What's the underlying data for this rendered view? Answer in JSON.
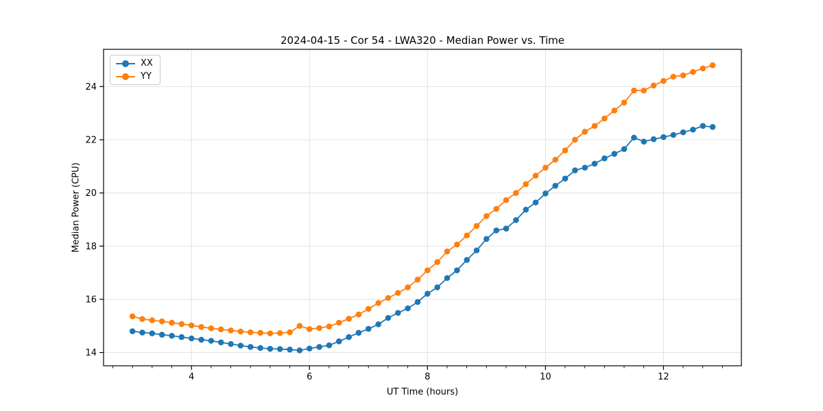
{
  "figure": {
    "background": "#ffffff"
  },
  "chart_data": {
    "type": "line",
    "title": "2024-04-15 - Cor 54 - LWA320 - Median Power vs. Time",
    "xlabel": "UT Time (hours)",
    "ylabel": "Median Power (CPU)",
    "xlim": [
      2.51,
      13.32
    ],
    "ylim": [
      13.5,
      25.4
    ],
    "xticks": [
      4,
      6,
      8,
      10,
      12
    ],
    "yticks": [
      14,
      16,
      18,
      20,
      22,
      24
    ],
    "x_minor_tick_step": 0.3333,
    "grid": true,
    "grid_color": "#e3e3e3",
    "spine_color": "#000000",
    "tick_color": "#000000",
    "legend_position": "upper-left",
    "marker": "circle",
    "x": [
      3.0,
      3.167,
      3.333,
      3.5,
      3.667,
      3.833,
      4.0,
      4.167,
      4.333,
      4.5,
      4.667,
      4.833,
      5.0,
      5.167,
      5.333,
      5.5,
      5.667,
      5.833,
      6.0,
      6.167,
      6.333,
      6.5,
      6.667,
      6.833,
      7.0,
      7.167,
      7.333,
      7.5,
      7.667,
      7.833,
      8.0,
      8.167,
      8.333,
      8.5,
      8.667,
      8.833,
      9.0,
      9.167,
      9.333,
      9.5,
      9.667,
      9.833,
      10.0,
      10.167,
      10.333,
      10.5,
      10.667,
      10.833,
      11.0,
      11.167,
      11.333,
      11.5,
      11.667,
      11.833,
      12.0,
      12.167,
      12.333,
      12.5,
      12.667,
      12.833
    ],
    "series": [
      {
        "name": "XX",
        "color": "#1f77b4",
        "values": [
          14.8,
          14.75,
          14.72,
          14.67,
          14.63,
          14.58,
          14.53,
          14.48,
          14.44,
          14.38,
          14.32,
          14.26,
          14.21,
          14.17,
          14.14,
          14.13,
          14.11,
          14.08,
          14.15,
          14.21,
          14.27,
          14.42,
          14.58,
          14.74,
          14.89,
          15.06,
          15.3,
          15.49,
          15.66,
          15.9,
          16.21,
          16.45,
          16.8,
          17.09,
          17.48,
          17.84,
          18.27,
          18.59,
          18.66,
          18.98,
          19.37,
          19.64,
          19.98,
          20.27,
          20.54,
          20.85,
          20.95,
          21.1,
          21.3,
          21.47,
          21.65,
          22.08,
          21.93,
          22.02,
          22.1,
          22.18,
          22.28,
          22.38,
          22.52,
          22.48
        ]
      },
      {
        "name": "YY",
        "color": "#ff7f0e",
        "values": [
          15.36,
          15.26,
          15.21,
          15.17,
          15.12,
          15.07,
          15.02,
          14.96,
          14.91,
          14.87,
          14.83,
          14.79,
          14.76,
          14.74,
          14.72,
          14.73,
          14.76,
          15.0,
          14.88,
          14.92,
          14.98,
          15.12,
          15.27,
          15.43,
          15.64,
          15.86,
          16.05,
          16.24,
          16.45,
          16.74,
          17.09,
          17.4,
          17.8,
          18.06,
          18.4,
          18.76,
          19.13,
          19.4,
          19.73,
          20.0,
          20.33,
          20.65,
          20.95,
          21.25,
          21.6,
          22.0,
          22.3,
          22.52,
          22.8,
          23.1,
          23.4,
          23.85,
          23.85,
          24.04,
          24.21,
          24.37,
          24.42,
          24.55,
          24.68,
          24.8
        ]
      }
    ]
  },
  "legend": {
    "entries": [
      {
        "label": "XX"
      },
      {
        "label": "YY"
      }
    ]
  }
}
